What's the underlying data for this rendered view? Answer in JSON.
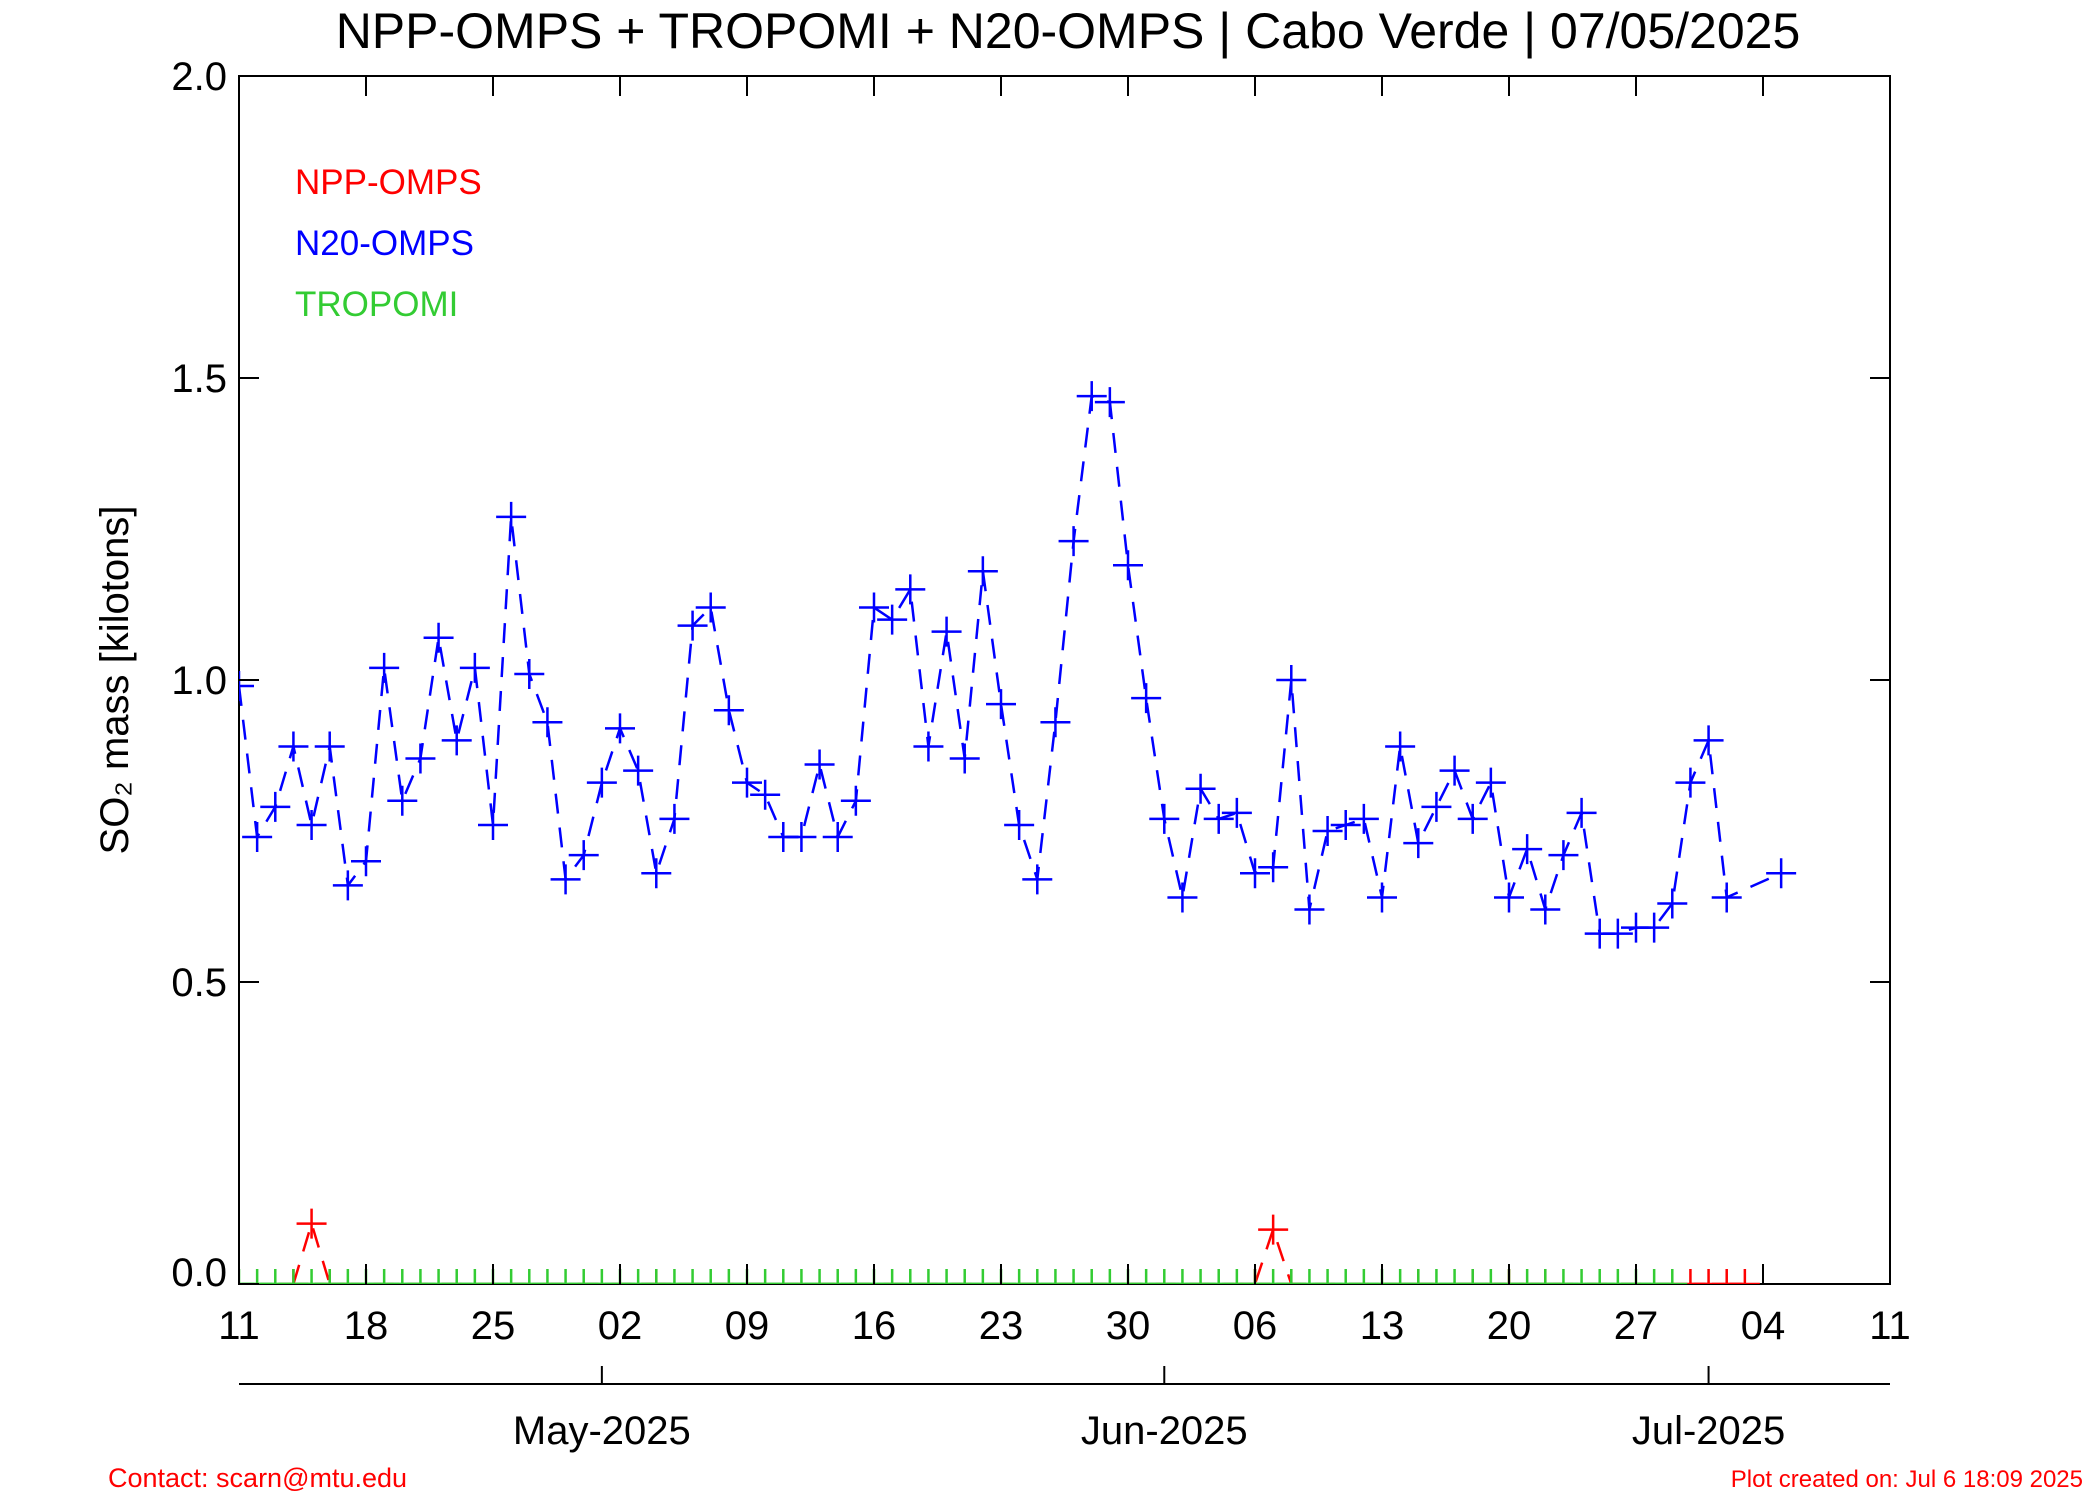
{
  "chart_data": {
    "type": "line",
    "title": "NPP-OMPS + TROPOMI + N20-OMPS | Cabo Verde | 07/05/2025",
    "ylabel": "SO₂ mass [kilotons]",
    "contact": "Contact: scarn@mtu.edu",
    "created": "Plot created on: Jul  6 18:09 2025",
    "legend": "upper left",
    "xlim": [
      "2025-04-11",
      "2025-07-11"
    ],
    "xticks": [
      {
        "value": "2025-04-11",
        "label": "11"
      },
      {
        "value": "2025-04-18",
        "label": "18"
      },
      {
        "value": "2025-04-25",
        "label": "25"
      },
      {
        "value": "2025-05-02",
        "label": "02"
      },
      {
        "value": "2025-05-09",
        "label": "09"
      },
      {
        "value": "2025-05-16",
        "label": "16"
      },
      {
        "value": "2025-05-23",
        "label": "23"
      },
      {
        "value": "2025-05-30",
        "label": "30"
      },
      {
        "value": "2025-06-06",
        "label": "06"
      },
      {
        "value": "2025-06-13",
        "label": "13"
      },
      {
        "value": "2025-06-20",
        "label": "20"
      },
      {
        "value": "2025-06-27",
        "label": "27"
      },
      {
        "value": "2025-07-04",
        "label": "04"
      },
      {
        "value": "2025-07-11",
        "label": "11"
      }
    ],
    "month_ticks": [
      {
        "value": "2025-05-01",
        "label": "May-2025"
      },
      {
        "value": "2025-06-01",
        "label": "Jun-2025"
      },
      {
        "value": "2025-07-01",
        "label": "Jul-2025"
      }
    ],
    "ylim": [
      0,
      2
    ],
    "yticks": [
      {
        "value": 0,
        "label": "0.0"
      },
      {
        "value": 0.5,
        "label": "0.5"
      },
      {
        "value": 1,
        "label": "1.0"
      },
      {
        "value": 1.5,
        "label": "1.5"
      },
      {
        "value": 2,
        "label": "2.0"
      }
    ],
    "series": [
      {
        "name": "NPP-OMPS",
        "color": "#ff0000",
        "linestyle": "dashed",
        "x": [
          "2025-04-14",
          "2025-04-15",
          "2025-04-16",
          "2025-05-04",
          "2025-06-06",
          "2025-06-07",
          "2025-06-08",
          "2025-06-15",
          "2025-06-18",
          "2025-06-20",
          "2025-06-22",
          "2025-06-30",
          "2025-07-01",
          "2025-07-02",
          "2025-07-03"
        ],
        "values": [
          0,
          0.1,
          0,
          0,
          0,
          0.09,
          0,
          0,
          0,
          0,
          0,
          0,
          0,
          0,
          0
        ]
      },
      {
        "name": "N20-OMPS",
        "color": "#0000ff",
        "linestyle": "dashed",
        "x": [
          "2025-04-11",
          "2025-04-12",
          "2025-04-13",
          "2025-04-14",
          "2025-04-15",
          "2025-04-16",
          "2025-04-17",
          "2025-04-18",
          "2025-04-19",
          "2025-04-20",
          "2025-04-21",
          "2025-04-22",
          "2025-04-23",
          "2025-04-24",
          "2025-04-25",
          "2025-04-26",
          "2025-04-27",
          "2025-04-28",
          "2025-04-29",
          "2025-04-30",
          "2025-05-01",
          "2025-05-02",
          "2025-05-03",
          "2025-05-04",
          "2025-05-05",
          "2025-05-06",
          "2025-05-07",
          "2025-05-08",
          "2025-05-09",
          "2025-05-10",
          "2025-05-11",
          "2025-05-12",
          "2025-05-13",
          "2025-05-14",
          "2025-05-15",
          "2025-05-16",
          "2025-05-17",
          "2025-05-18",
          "2025-05-19",
          "2025-05-20",
          "2025-05-21",
          "2025-05-22",
          "2025-05-23",
          "2025-05-24",
          "2025-05-25",
          "2025-05-26",
          "2025-05-27",
          "2025-05-28",
          "2025-05-29",
          "2025-05-30",
          "2025-05-31",
          "2025-06-01",
          "2025-06-02",
          "2025-06-03",
          "2025-06-04",
          "2025-06-05",
          "2025-06-06",
          "2025-06-07",
          "2025-06-08",
          "2025-06-09",
          "2025-06-10",
          "2025-06-11",
          "2025-06-12",
          "2025-06-13",
          "2025-06-14",
          "2025-06-15",
          "2025-06-16",
          "2025-06-17",
          "2025-06-18",
          "2025-06-19",
          "2025-06-20",
          "2025-06-21",
          "2025-06-22",
          "2025-06-23",
          "2025-06-24",
          "2025-06-25",
          "2025-06-26",
          "2025-06-27",
          "2025-06-28",
          "2025-06-29",
          "2025-06-30",
          "2025-07-01",
          "2025-07-02",
          "2025-07-05"
        ],
        "values": [
          0.99,
          0.74,
          0.79,
          0.89,
          0.76,
          0.89,
          0.66,
          0.7,
          1.02,
          0.8,
          0.87,
          1.07,
          0.9,
          1.02,
          0.76,
          1.27,
          1.01,
          0.93,
          0.67,
          0.71,
          0.83,
          0.92,
          0.85,
          0.68,
          0.77,
          1.09,
          1.12,
          0.95,
          0.83,
          0.81,
          0.74,
          0.74,
          0.86,
          0.74,
          0.8,
          1.12,
          1.1,
          1.15,
          0.89,
          1.08,
          0.87,
          1.18,
          0.96,
          0.76,
          0.67,
          0.93,
          1.23,
          1.47,
          1.46,
          1.19,
          0.97,
          0.77,
          0.64,
          0.82,
          0.77,
          0.78,
          0.68,
          0.69,
          1.0,
          0.62,
          0.75,
          0.76,
          0.77,
          0.64,
          0.89,
          0.73,
          0.79,
          0.85,
          0.77,
          0.83,
          0.64,
          0.72,
          0.62,
          0.71,
          0.78,
          0.58,
          0.58,
          0.59,
          0.59,
          0.63,
          0.83,
          0.9,
          0.64,
          0.68
        ]
      },
      {
        "name": "TROPOMI",
        "color": "#33cc33",
        "linestyle": "solid",
        "x": [
          "2025-04-11",
          "2025-04-12",
          "2025-04-13",
          "2025-04-14",
          "2025-04-15",
          "2025-04-16",
          "2025-04-17",
          "2025-04-18",
          "2025-04-19",
          "2025-04-20",
          "2025-04-21",
          "2025-04-22",
          "2025-04-23",
          "2025-04-24",
          "2025-04-25",
          "2025-04-26",
          "2025-04-27",
          "2025-04-28",
          "2025-04-29",
          "2025-04-30",
          "2025-05-01",
          "2025-05-02",
          "2025-05-03",
          "2025-05-04",
          "2025-05-05",
          "2025-05-06",
          "2025-05-07",
          "2025-05-08",
          "2025-05-09",
          "2025-05-10",
          "2025-05-11",
          "2025-05-12",
          "2025-05-13",
          "2025-05-14",
          "2025-05-15",
          "2025-05-16",
          "2025-05-17",
          "2025-05-18",
          "2025-05-19",
          "2025-05-20",
          "2025-05-21",
          "2025-05-22",
          "2025-05-23",
          "2025-05-24",
          "2025-05-25",
          "2025-05-26",
          "2025-05-27",
          "2025-05-28",
          "2025-05-29",
          "2025-05-30",
          "2025-05-31",
          "2025-06-01",
          "2025-06-02",
          "2025-06-03",
          "2025-06-04",
          "2025-06-05",
          "2025-06-06",
          "2025-06-07",
          "2025-06-08",
          "2025-06-09",
          "2025-06-10",
          "2025-06-11",
          "2025-06-12",
          "2025-06-13",
          "2025-06-14",
          "2025-06-15",
          "2025-06-16",
          "2025-06-17",
          "2025-06-18",
          "2025-06-19",
          "2025-06-20",
          "2025-06-21",
          "2025-06-22",
          "2025-06-23",
          "2025-06-24",
          "2025-06-25",
          "2025-06-26",
          "2025-06-27",
          "2025-06-28",
          "2025-06-29"
        ],
        "values": [
          0,
          0,
          0,
          0,
          0,
          0,
          0,
          0,
          0,
          0,
          0,
          0,
          0,
          0,
          0,
          0,
          0,
          0,
          0,
          0,
          0,
          0,
          0,
          0,
          0,
          0,
          0,
          0,
          0,
          0,
          0,
          0,
          0,
          0,
          0,
          0,
          0,
          0,
          0,
          0,
          0,
          0,
          0,
          0,
          0,
          0,
          0,
          0,
          0,
          0,
          0,
          0,
          0,
          0,
          0,
          0,
          0,
          0,
          0,
          0,
          0,
          0,
          0,
          0,
          0,
          0,
          0,
          0,
          0,
          0,
          0,
          0,
          0,
          0,
          0,
          0,
          0,
          0,
          0,
          0
        ]
      }
    ]
  }
}
